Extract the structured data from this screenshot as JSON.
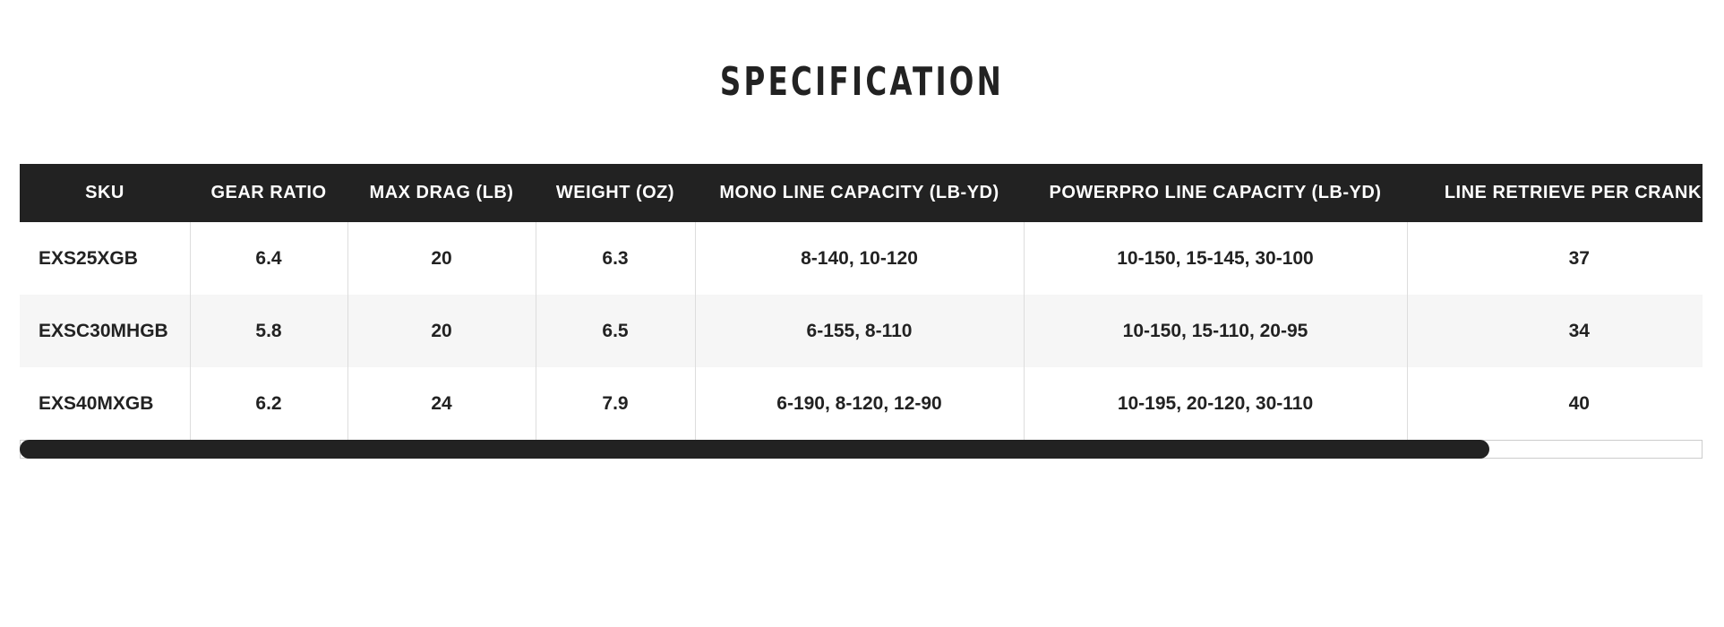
{
  "title": "SPECIFICATION",
  "table": {
    "headers": [
      "SKU",
      "GEAR RATIO",
      "MAX DRAG (LB)",
      "WEIGHT (OZ)",
      "MONO LINE CAPACITY (LB-YD)",
      "POWERPRO LINE CAPACITY (LB-YD)",
      "LINE RETRIEVE PER CRANK ("
    ],
    "rows": [
      [
        "EXS25XGB",
        "6.4",
        "20",
        "6.3",
        "8-140, 10-120",
        "10-150, 15-145, 30-100",
        "37"
      ],
      [
        "EXSC30MHGB",
        "5.8",
        "20",
        "6.5",
        "6-155, 8-110",
        "10-150, 15-110, 20-95",
        "34"
      ],
      [
        "EXS40MXGB",
        "6.2",
        "24",
        "7.9",
        "6-190, 8-120, 12-90",
        "10-195, 20-120, 30-110",
        "40"
      ]
    ]
  }
}
